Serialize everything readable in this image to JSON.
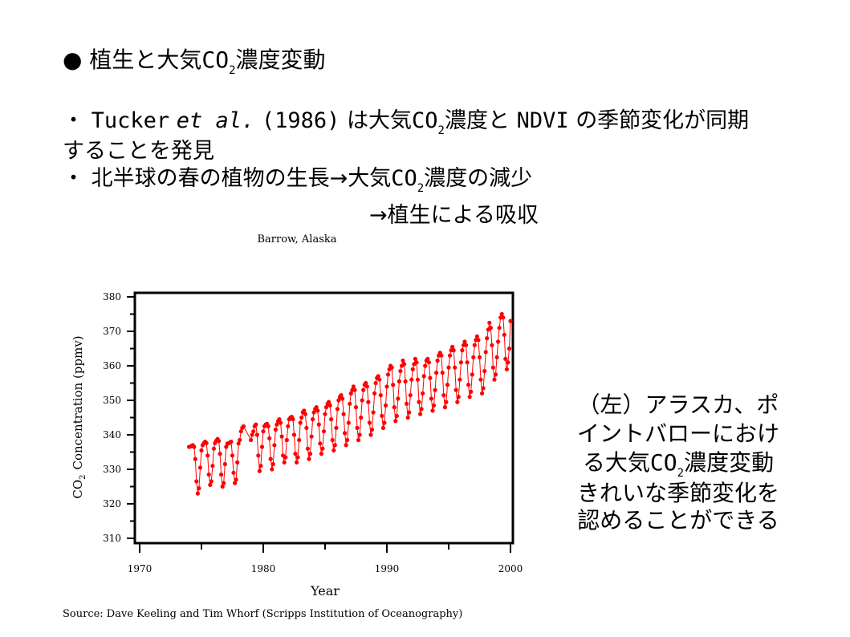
{
  "slide": {
    "heading": {
      "bullet": "●",
      "pre": "植生と大気",
      "chem": "CO",
      "sub": "2",
      "post": "濃度変動"
    },
    "point1": {
      "line1": {
        "mark": "・",
        "author": "Tucker",
        "etal": "et al.",
        "year": "(1986)",
        "text1": "は大気",
        "chem": "CO",
        "sub": "2",
        "text2": "濃度と",
        "ndvi": "NDVI",
        "text3": "の季節変化が同期"
      },
      "line2": "することを発見"
    },
    "point2": {
      "line1": {
        "mark": "・",
        "text1": "北半球の春の植物の生長→大気",
        "chem": "CO",
        "sub": "2",
        "text2": "濃度の減少"
      },
      "line2": "→植生による吸収"
    },
    "caption": {
      "line1": "（左）アラスカ、ポ",
      "line2": "イントバローにおけ",
      "line3": {
        "pre": "る大気",
        "chem": "CO",
        "sub": "2",
        "post": "濃度変動"
      },
      "line4": "きれいな季節変化を",
      "line5": "認めることができる"
    },
    "source": "Source: Dave Keeling and Tim Whorf (Scripps Institution of Oceanography)"
  },
  "chart_data": {
    "type": "line",
    "title": "Barrow, Alaska",
    "xlabel": "Year",
    "ylabel_chem": "CO",
    "ylabel_sub": "2",
    "ylabel_rest": "Concentration (ppmv)",
    "xlim": [
      1970,
      2000
    ],
    "ylim": [
      310,
      380
    ],
    "x_ticks": [
      1970,
      1980,
      1990,
      2000
    ],
    "y_ticks": [
      310,
      320,
      330,
      340,
      350,
      360,
      370,
      380
    ],
    "series_color": "#ff0000",
    "grid": false,
    "legend": "none",
    "series": [
      {
        "points": [
          [
            1974.0,
            336.5
          ],
          [
            1974.1,
            336.6
          ],
          [
            1974.2,
            336.8
          ],
          [
            1974.3,
            337.0
          ],
          [
            1974.4,
            336.5
          ],
          [
            1974.5,
            333.0
          ],
          [
            1974.6,
            326.5
          ],
          [
            1974.7,
            323.0
          ],
          [
            1974.8,
            324.5
          ],
          [
            1974.9,
            330.5
          ],
          [
            1975.0,
            335.5
          ],
          [
            1975.1,
            337.0
          ],
          [
            1975.2,
            337.6
          ],
          [
            1975.3,
            338.0
          ],
          [
            1975.4,
            337.6
          ],
          [
            1975.5,
            334.0
          ],
          [
            1975.6,
            328.5
          ],
          [
            1975.7,
            325.5
          ],
          [
            1975.8,
            326.5
          ],
          [
            1975.9,
            331.0
          ],
          [
            1976.0,
            336.0
          ],
          [
            1976.1,
            337.6
          ],
          [
            1976.2,
            338.3
          ],
          [
            1976.3,
            338.8
          ],
          [
            1976.4,
            338.2
          ],
          [
            1976.5,
            334.5
          ],
          [
            1976.6,
            328.5
          ],
          [
            1976.7,
            325.0
          ],
          [
            1976.8,
            326.0
          ],
          [
            1976.9,
            331.5
          ],
          [
            1977.0,
            336.5
          ],
          [
            1977.1,
            337.5
          ],
          [
            1977.2,
            337.5
          ],
          [
            1977.3,
            337.8
          ],
          [
            1977.4,
            338.0
          ],
          [
            1977.5,
            334.0
          ],
          [
            1977.6,
            329.0
          ],
          [
            1977.7,
            326.0
          ],
          [
            1977.8,
            327.0
          ],
          [
            1977.9,
            332.0
          ],
          [
            1978.0,
            337.5
          ],
          [
            1978.1,
            338.5
          ],
          [
            1978.2,
            341.0
          ],
          [
            1978.3,
            342.0
          ],
          [
            1978.4,
            342.5
          ],
          [
            1979.0,
            338.5
          ],
          [
            1979.1,
            340.0
          ],
          [
            1979.2,
            341.0
          ],
          [
            1979.3,
            342.5
          ],
          [
            1979.4,
            343.0
          ],
          [
            1979.5,
            340.0
          ],
          [
            1979.6,
            334.0
          ],
          [
            1979.7,
            329.5
          ],
          [
            1979.8,
            331.0
          ],
          [
            1979.9,
            336.5
          ],
          [
            1980.0,
            341.0
          ],
          [
            1980.1,
            342.5
          ],
          [
            1980.2,
            343.0
          ],
          [
            1980.3,
            343.2
          ],
          [
            1980.4,
            342.5
          ],
          [
            1980.5,
            339.0
          ],
          [
            1980.6,
            333.0
          ],
          [
            1980.7,
            330.0
          ],
          [
            1980.8,
            331.5
          ],
          [
            1980.9,
            337.0
          ],
          [
            1981.0,
            341.5
          ],
          [
            1981.1,
            343.0
          ],
          [
            1981.2,
            344.0
          ],
          [
            1981.3,
            344.5
          ],
          [
            1981.4,
            343.5
          ],
          [
            1981.5,
            339.5
          ],
          [
            1981.6,
            334.0
          ],
          [
            1981.7,
            332.0
          ],
          [
            1981.8,
            333.5
          ],
          [
            1981.9,
            338.5
          ],
          [
            1982.0,
            342.5
          ],
          [
            1982.1,
            344.5
          ],
          [
            1982.2,
            345.0
          ],
          [
            1982.3,
            345.2
          ],
          [
            1982.4,
            344.5
          ],
          [
            1982.5,
            340.0
          ],
          [
            1982.6,
            334.5
          ],
          [
            1982.7,
            332.0
          ],
          [
            1982.8,
            333.5
          ],
          [
            1982.9,
            338.5
          ],
          [
            1983.0,
            343.5
          ],
          [
            1983.1,
            345.0
          ],
          [
            1983.2,
            346.5
          ],
          [
            1983.3,
            347.0
          ],
          [
            1983.4,
            346.0
          ],
          [
            1983.5,
            342.0
          ],
          [
            1983.6,
            336.0
          ],
          [
            1983.7,
            333.0
          ],
          [
            1983.8,
            334.5
          ],
          [
            1983.9,
            339.5
          ],
          [
            1984.0,
            344.5
          ],
          [
            1984.1,
            346.5
          ],
          [
            1984.2,
            347.5
          ],
          [
            1984.3,
            348.0
          ],
          [
            1984.4,
            347.0
          ],
          [
            1984.5,
            343.0
          ],
          [
            1984.6,
            337.5
          ],
          [
            1984.7,
            334.5
          ],
          [
            1984.8,
            336.0
          ],
          [
            1984.9,
            341.0
          ],
          [
            1985.0,
            346.0
          ],
          [
            1985.1,
            348.0
          ],
          [
            1985.2,
            349.0
          ],
          [
            1985.3,
            349.5
          ],
          [
            1985.4,
            348.5
          ],
          [
            1985.5,
            344.5
          ],
          [
            1985.6,
            338.5
          ],
          [
            1985.7,
            335.5
          ],
          [
            1985.8,
            337.0
          ],
          [
            1985.9,
            342.0
          ],
          [
            1986.0,
            347.5
          ],
          [
            1986.1,
            350.0
          ],
          [
            1986.2,
            351.0
          ],
          [
            1986.3,
            351.5
          ],
          [
            1986.4,
            350.5
          ],
          [
            1986.5,
            346.0
          ],
          [
            1986.6,
            340.5
          ],
          [
            1986.7,
            337.0
          ],
          [
            1986.8,
            338.5
          ],
          [
            1986.9,
            343.5
          ],
          [
            1987.0,
            349.0
          ],
          [
            1987.1,
            352.0
          ],
          [
            1987.2,
            353.0
          ],
          [
            1987.3,
            354.0
          ],
          [
            1987.4,
            353.0
          ],
          [
            1987.5,
            348.0
          ],
          [
            1987.6,
            342.0
          ],
          [
            1987.7,
            338.5
          ],
          [
            1987.8,
            340.0
          ],
          [
            1987.9,
            345.0
          ],
          [
            1988.0,
            350.0
          ],
          [
            1988.1,
            353.0
          ],
          [
            1988.2,
            354.5
          ],
          [
            1988.3,
            355.0
          ],
          [
            1988.4,
            354.0
          ],
          [
            1988.5,
            349.5
          ],
          [
            1988.6,
            343.5
          ],
          [
            1988.7,
            340.0
          ],
          [
            1988.8,
            341.5
          ],
          [
            1988.9,
            346.5
          ],
          [
            1989.0,
            352.0
          ],
          [
            1989.1,
            355.0
          ],
          [
            1989.2,
            356.5
          ],
          [
            1989.3,
            357.0
          ],
          [
            1989.4,
            356.0
          ],
          [
            1989.5,
            351.5
          ],
          [
            1989.6,
            345.5
          ],
          [
            1989.7,
            342.0
          ],
          [
            1989.8,
            343.5
          ],
          [
            1989.9,
            348.5
          ],
          [
            1990.0,
            354.0
          ],
          [
            1990.1,
            357.5
          ],
          [
            1990.2,
            359.0
          ],
          [
            1990.3,
            360.0
          ],
          [
            1990.4,
            359.5
          ],
          [
            1990.5,
            354.5
          ],
          [
            1990.6,
            348.0
          ],
          [
            1990.7,
            344.0
          ],
          [
            1990.8,
            345.5
          ],
          [
            1990.9,
            350.5
          ],
          [
            1991.0,
            355.5
          ],
          [
            1991.1,
            358.5
          ],
          [
            1991.2,
            360.0
          ],
          [
            1991.3,
            361.5
          ],
          [
            1991.4,
            360.5
          ],
          [
            1991.5,
            355.5
          ],
          [
            1991.6,
            349.0
          ],
          [
            1991.7,
            345.0
          ],
          [
            1991.8,
            346.5
          ],
          [
            1991.9,
            351.5
          ],
          [
            1992.0,
            356.0
          ],
          [
            1992.1,
            359.0
          ],
          [
            1992.2,
            360.5
          ],
          [
            1992.3,
            362.0
          ],
          [
            1992.4,
            361.0
          ],
          [
            1992.5,
            356.0
          ],
          [
            1992.6,
            349.5
          ],
          [
            1992.7,
            346.0
          ],
          [
            1992.8,
            347.5
          ],
          [
            1992.9,
            352.0
          ],
          [
            1993.0,
            357.0
          ],
          [
            1993.1,
            360.0
          ],
          [
            1993.2,
            361.5
          ],
          [
            1993.3,
            362.0
          ],
          [
            1993.4,
            361.0
          ],
          [
            1993.5,
            356.5
          ],
          [
            1993.6,
            350.5
          ],
          [
            1993.7,
            347.0
          ],
          [
            1993.8,
            348.5
          ],
          [
            1993.9,
            353.0
          ],
          [
            1994.0,
            358.0
          ],
          [
            1994.1,
            361.5
          ],
          [
            1994.2,
            363.0
          ],
          [
            1994.3,
            363.8
          ],
          [
            1994.4,
            363.0
          ],
          [
            1994.5,
            358.0
          ],
          [
            1994.6,
            351.5
          ],
          [
            1994.7,
            348.0
          ],
          [
            1994.8,
            349.5
          ],
          [
            1994.9,
            354.5
          ],
          [
            1995.0,
            359.5
          ],
          [
            1995.1,
            363.0
          ],
          [
            1995.2,
            364.5
          ],
          [
            1995.3,
            365.5
          ],
          [
            1995.4,
            364.5
          ],
          [
            1995.5,
            359.5
          ],
          [
            1995.6,
            353.0
          ],
          [
            1995.7,
            349.5
          ],
          [
            1995.8,
            351.0
          ],
          [
            1995.9,
            356.0
          ],
          [
            1996.0,
            361.0
          ],
          [
            1996.1,
            364.5
          ],
          [
            1996.2,
            366.0
          ],
          [
            1996.3,
            367.0
          ],
          [
            1996.4,
            366.0
          ],
          [
            1996.5,
            361.0
          ],
          [
            1996.6,
            354.5
          ],
          [
            1996.7,
            351.0
          ],
          [
            1996.8,
            352.5
          ],
          [
            1996.9,
            357.5
          ],
          [
            1997.0,
            362.5
          ],
          [
            1997.1,
            366.0
          ],
          [
            1997.2,
            367.5
          ],
          [
            1997.3,
            368.5
          ],
          [
            1997.4,
            367.5
          ],
          [
            1997.5,
            362.5
          ],
          [
            1997.6,
            356.0
          ],
          [
            1997.7,
            352.0
          ],
          [
            1997.8,
            353.5
          ],
          [
            1997.9,
            358.5
          ],
          [
            1998.0,
            364.0
          ],
          [
            1998.1,
            368.0
          ],
          [
            1998.2,
            370.5
          ],
          [
            1998.3,
            372.5
          ],
          [
            1998.4,
            371.0
          ],
          [
            1998.5,
            366.0
          ],
          [
            1998.6,
            359.5
          ],
          [
            1998.7,
            356.0
          ],
          [
            1998.8,
            357.5
          ],
          [
            1998.9,
            362.5
          ],
          [
            1999.0,
            367.0
          ],
          [
            1999.1,
            371.0
          ],
          [
            1999.2,
            374.0
          ],
          [
            1999.3,
            375.0
          ],
          [
            1999.4,
            374.0
          ],
          [
            1999.5,
            369.0
          ],
          [
            1999.6,
            362.0
          ],
          [
            1999.7,
            359.0
          ],
          [
            1999.8,
            361.0
          ],
          [
            1999.9,
            365.0
          ],
          [
            2000.0,
            373.0
          ]
        ]
      }
    ]
  }
}
